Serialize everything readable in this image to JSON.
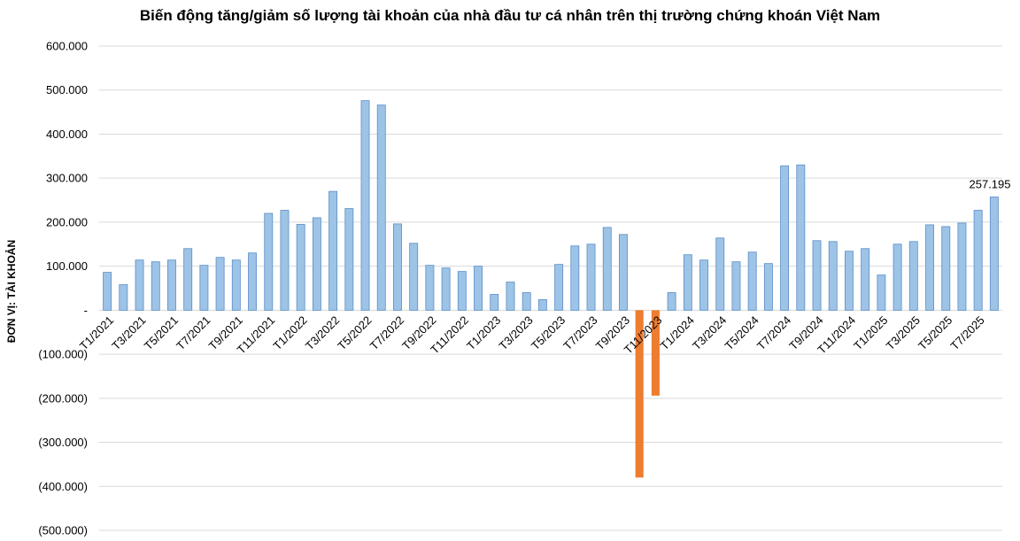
{
  "chart_data": {
    "type": "bar",
    "title": "Biến động tăng/giảm số lượng tài khoản của nhà đầu tư cá nhân trên thị trường chứng khoán Việt Nam",
    "ylabel": "ĐƠN VỊ: TÀI KHOẢN",
    "ylim": [
      -500000,
      600000
    ],
    "y_ticks": [
      600000,
      500000,
      400000,
      300000,
      200000,
      100000,
      0,
      -100000,
      -200000,
      -300000,
      -400000,
      -500000
    ],
    "y_tick_labels": [
      "600.000",
      "500.000",
      "400.000",
      "300.000",
      "200.000",
      "100.000",
      "-",
      "(100.000)",
      "(200.000)",
      "(300.000)",
      "(400.000)",
      "(500.000)"
    ],
    "grid": true,
    "colors": {
      "positive": "#9dc3e6",
      "positive_edge": "#5b8fc7",
      "negative": "#ed7d31",
      "grid": "#d9d9d9"
    },
    "categories": [
      "T1/2021",
      "T2/2021",
      "T3/2021",
      "T4/2021",
      "T5/2021",
      "T6/2021",
      "T7/2021",
      "T8/2021",
      "T9/2021",
      "T10/2021",
      "T11/2021",
      "T12/2021",
      "T1/2022",
      "T2/2022",
      "T3/2022",
      "T4/2022",
      "T5/2022",
      "T6/2022",
      "T7/2022",
      "T8/2022",
      "T9/2022",
      "T10/2022",
      "T11/2022",
      "T12/2022",
      "T1/2023",
      "T2/2023",
      "T3/2023",
      "T4/2023",
      "T5/2023",
      "T6/2023",
      "T7/2023",
      "T8/2023",
      "T9/2023",
      "T10/2023",
      "T11/2023",
      "T12/2023",
      "T1/2024",
      "T2/2024",
      "T3/2024",
      "T4/2024",
      "T5/2024",
      "T6/2024",
      "T7/2024",
      "T8/2024",
      "T9/2024",
      "T10/2024",
      "T11/2024",
      "T12/2024",
      "T1/2025",
      "T2/2025",
      "T3/2025",
      "T4/2025",
      "T5/2025",
      "T6/2025",
      "T7/2025",
      "T8/2025"
    ],
    "x_tick_labels": [
      "T1/2021",
      "T3/2021",
      "T5/2021",
      "T7/2021",
      "T9/2021",
      "T11/2021",
      "T1/2022",
      "T3/2022",
      "T5/2022",
      "T7/2022",
      "T9/2022",
      "T11/2022",
      "T1/2023",
      "T3/2023",
      "T5/2023",
      "T7/2023",
      "T9/2023",
      "T11/2023",
      "T1/2024",
      "T3/2024",
      "T5/2024",
      "T7/2024",
      "T9/2024",
      "T11/2024",
      "T1/2025",
      "T3/2025",
      "T5/2025",
      "T7/2025"
    ],
    "values": [
      86000,
      58000,
      114000,
      110000,
      114000,
      140000,
      102000,
      120000,
      114000,
      130000,
      220000,
      227000,
      195000,
      210000,
      270000,
      231000,
      476000,
      466000,
      196000,
      152000,
      102000,
      96000,
      88000,
      100000,
      36000,
      64000,
      40000,
      24000,
      104000,
      146000,
      150000,
      188000,
      172000,
      -380000,
      -194000,
      40000,
      126000,
      114000,
      164000,
      110000,
      132000,
      106000,
      328000,
      330000,
      158000,
      156000,
      134000,
      140000,
      80000,
      150000,
      156000,
      194000,
      190000,
      198000,
      227000,
      257195
    ],
    "data_labels": [
      {
        "category": "T8/2025",
        "text": "257.195"
      }
    ]
  }
}
